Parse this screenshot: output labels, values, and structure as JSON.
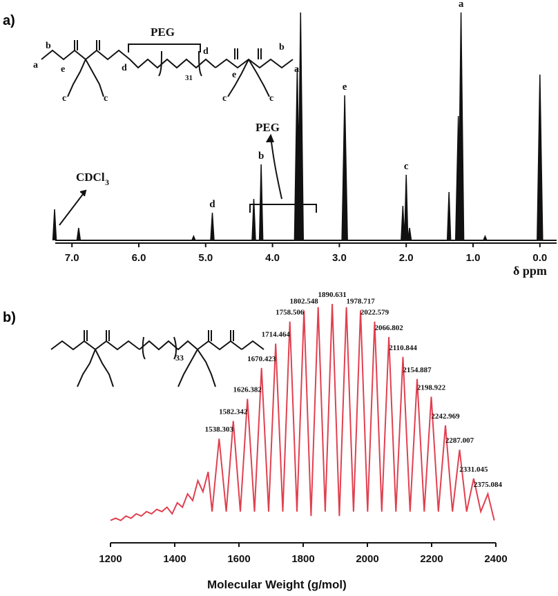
{
  "chart_data": [
    {
      "type": "line",
      "panel": "a)",
      "xlabel": "δ ppm",
      "x_ticks": [
        "7.0",
        "6.0",
        "5.0",
        "4.0",
        "3.0",
        "2.0",
        "1.0",
        "0.0"
      ],
      "xlim": [
        7.25,
        -0.25
      ],
      "x_reversed": true,
      "peaks": [
        {
          "x": 7.26,
          "h": 45,
          "label": ""
        },
        {
          "x": 6.9,
          "h": 18,
          "label": ""
        },
        {
          "x": 5.18,
          "h": 6,
          "label": ""
        },
        {
          "x": 4.9,
          "h": 40,
          "label": "d"
        },
        {
          "x": 4.28,
          "h": 60,
          "label": ""
        },
        {
          "x": 4.17,
          "h": 110,
          "label": "b"
        },
        {
          "x": 3.63,
          "h": 250,
          "label": ""
        },
        {
          "x": 3.58,
          "h": 330,
          "label": ""
        },
        {
          "x": 2.92,
          "h": 210,
          "label": "e"
        },
        {
          "x": 2.05,
          "h": 50,
          "label": ""
        },
        {
          "x": 2.0,
          "h": 95,
          "label": "c"
        },
        {
          "x": 1.95,
          "h": 18,
          "label": ""
        },
        {
          "x": 1.36,
          "h": 70,
          "label": ""
        },
        {
          "x": 1.22,
          "h": 180,
          "label": ""
        },
        {
          "x": 1.18,
          "h": 330,
          "label": "a"
        },
        {
          "x": 0.82,
          "h": 6,
          "label": ""
        },
        {
          "x": 0.0,
          "h": 240,
          "label": ""
        }
      ],
      "annotations": [
        "CDCl",
        "3",
        "PEG"
      ]
    },
    {
      "type": "line",
      "panel": "b)",
      "xlabel": "Molecular Weight (g/mol)",
      "xlim": [
        1200,
        2400
      ],
      "x_ticks": [
        "1200",
        "1400",
        "1600",
        "1800",
        "2000",
        "2200",
        "2400"
      ],
      "color": "#e0404f",
      "peaks": [
        {
          "x": 1538.303,
          "y": 0.39,
          "label": "1538.303"
        },
        {
          "x": 1582.342,
          "y": 0.47,
          "label": "1582.342"
        },
        {
          "x": 1626.382,
          "y": 0.57,
          "label": "1626.382"
        },
        {
          "x": 1670.423,
          "y": 0.71,
          "label": "1670.423"
        },
        {
          "x": 1714.464,
          "y": 0.82,
          "label": "1714.464"
        },
        {
          "x": 1758.506,
          "y": 0.92,
          "label": "1758.506"
        },
        {
          "x": 1802.548,
          "y": 0.97,
          "label": "1802.548"
        },
        {
          "x": 1890.631,
          "y": 1.0,
          "label": "1890.631"
        },
        {
          "x": 1978.717,
          "y": 0.97,
          "label": "1978.717"
        },
        {
          "x": 2022.579,
          "y": 0.92,
          "label": "2022.579"
        },
        {
          "x": 2066.802,
          "y": 0.85,
          "label": "2066.802"
        },
        {
          "x": 2110.844,
          "y": 0.76,
          "label": "2110.844"
        },
        {
          "x": 2154.887,
          "y": 0.66,
          "label": "2154.887"
        },
        {
          "x": 2198.922,
          "y": 0.58,
          "label": "2198.922"
        },
        {
          "x": 2242.969,
          "y": 0.45,
          "label": "2242.969"
        },
        {
          "x": 2287.007,
          "y": 0.34,
          "label": "2287.007"
        },
        {
          "x": 2331.045,
          "y": 0.21,
          "label": "2331.045"
        },
        {
          "x": 2375.084,
          "y": 0.14,
          "label": "2375.084"
        }
      ]
    }
  ],
  "structure_a": {
    "peg_label": "PEG",
    "repeat": "31",
    "labels": [
      "a",
      "b",
      "e",
      "d",
      "c",
      "c",
      "d",
      "e",
      "b",
      "a",
      "c",
      "c"
    ]
  },
  "structure_b": {
    "repeat": "33"
  }
}
